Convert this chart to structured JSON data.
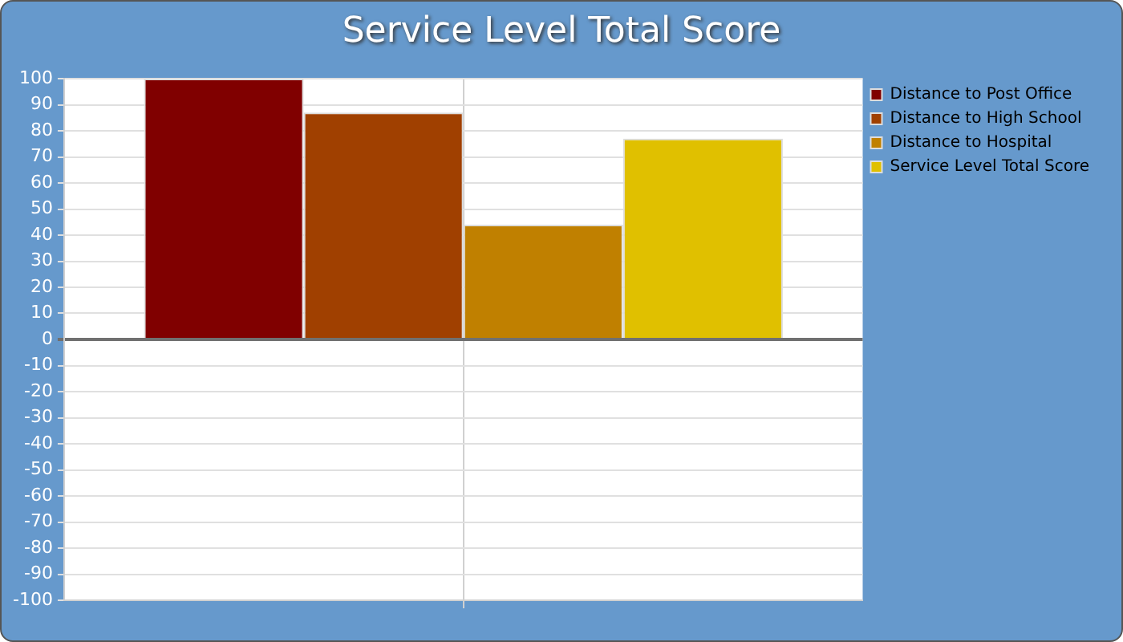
{
  "chart_data": {
    "type": "bar",
    "title": "Service Level Total Score",
    "categories": [
      null
    ],
    "series": [
      {
        "name": "Distance to Post Office",
        "color": "#800000",
        "values": [
          100
        ]
      },
      {
        "name": "Distance to High School",
        "color": "#a04000",
        "values": [
          87
        ]
      },
      {
        "name": "Distance to Hospital",
        "color": "#c08000",
        "values": [
          44
        ]
      },
      {
        "name": "Service Level Total Score",
        "color": "#e0c000",
        "values": [
          77
        ]
      }
    ],
    "ylim": [
      -100,
      100
    ],
    "yticks": [
      -100,
      -90,
      -80,
      -70,
      -60,
      -50,
      -40,
      -30,
      -20,
      -10,
      0,
      10,
      20,
      30,
      40,
      50,
      60,
      70,
      80,
      90,
      100
    ],
    "grid": true,
    "legend": "top right"
  }
}
